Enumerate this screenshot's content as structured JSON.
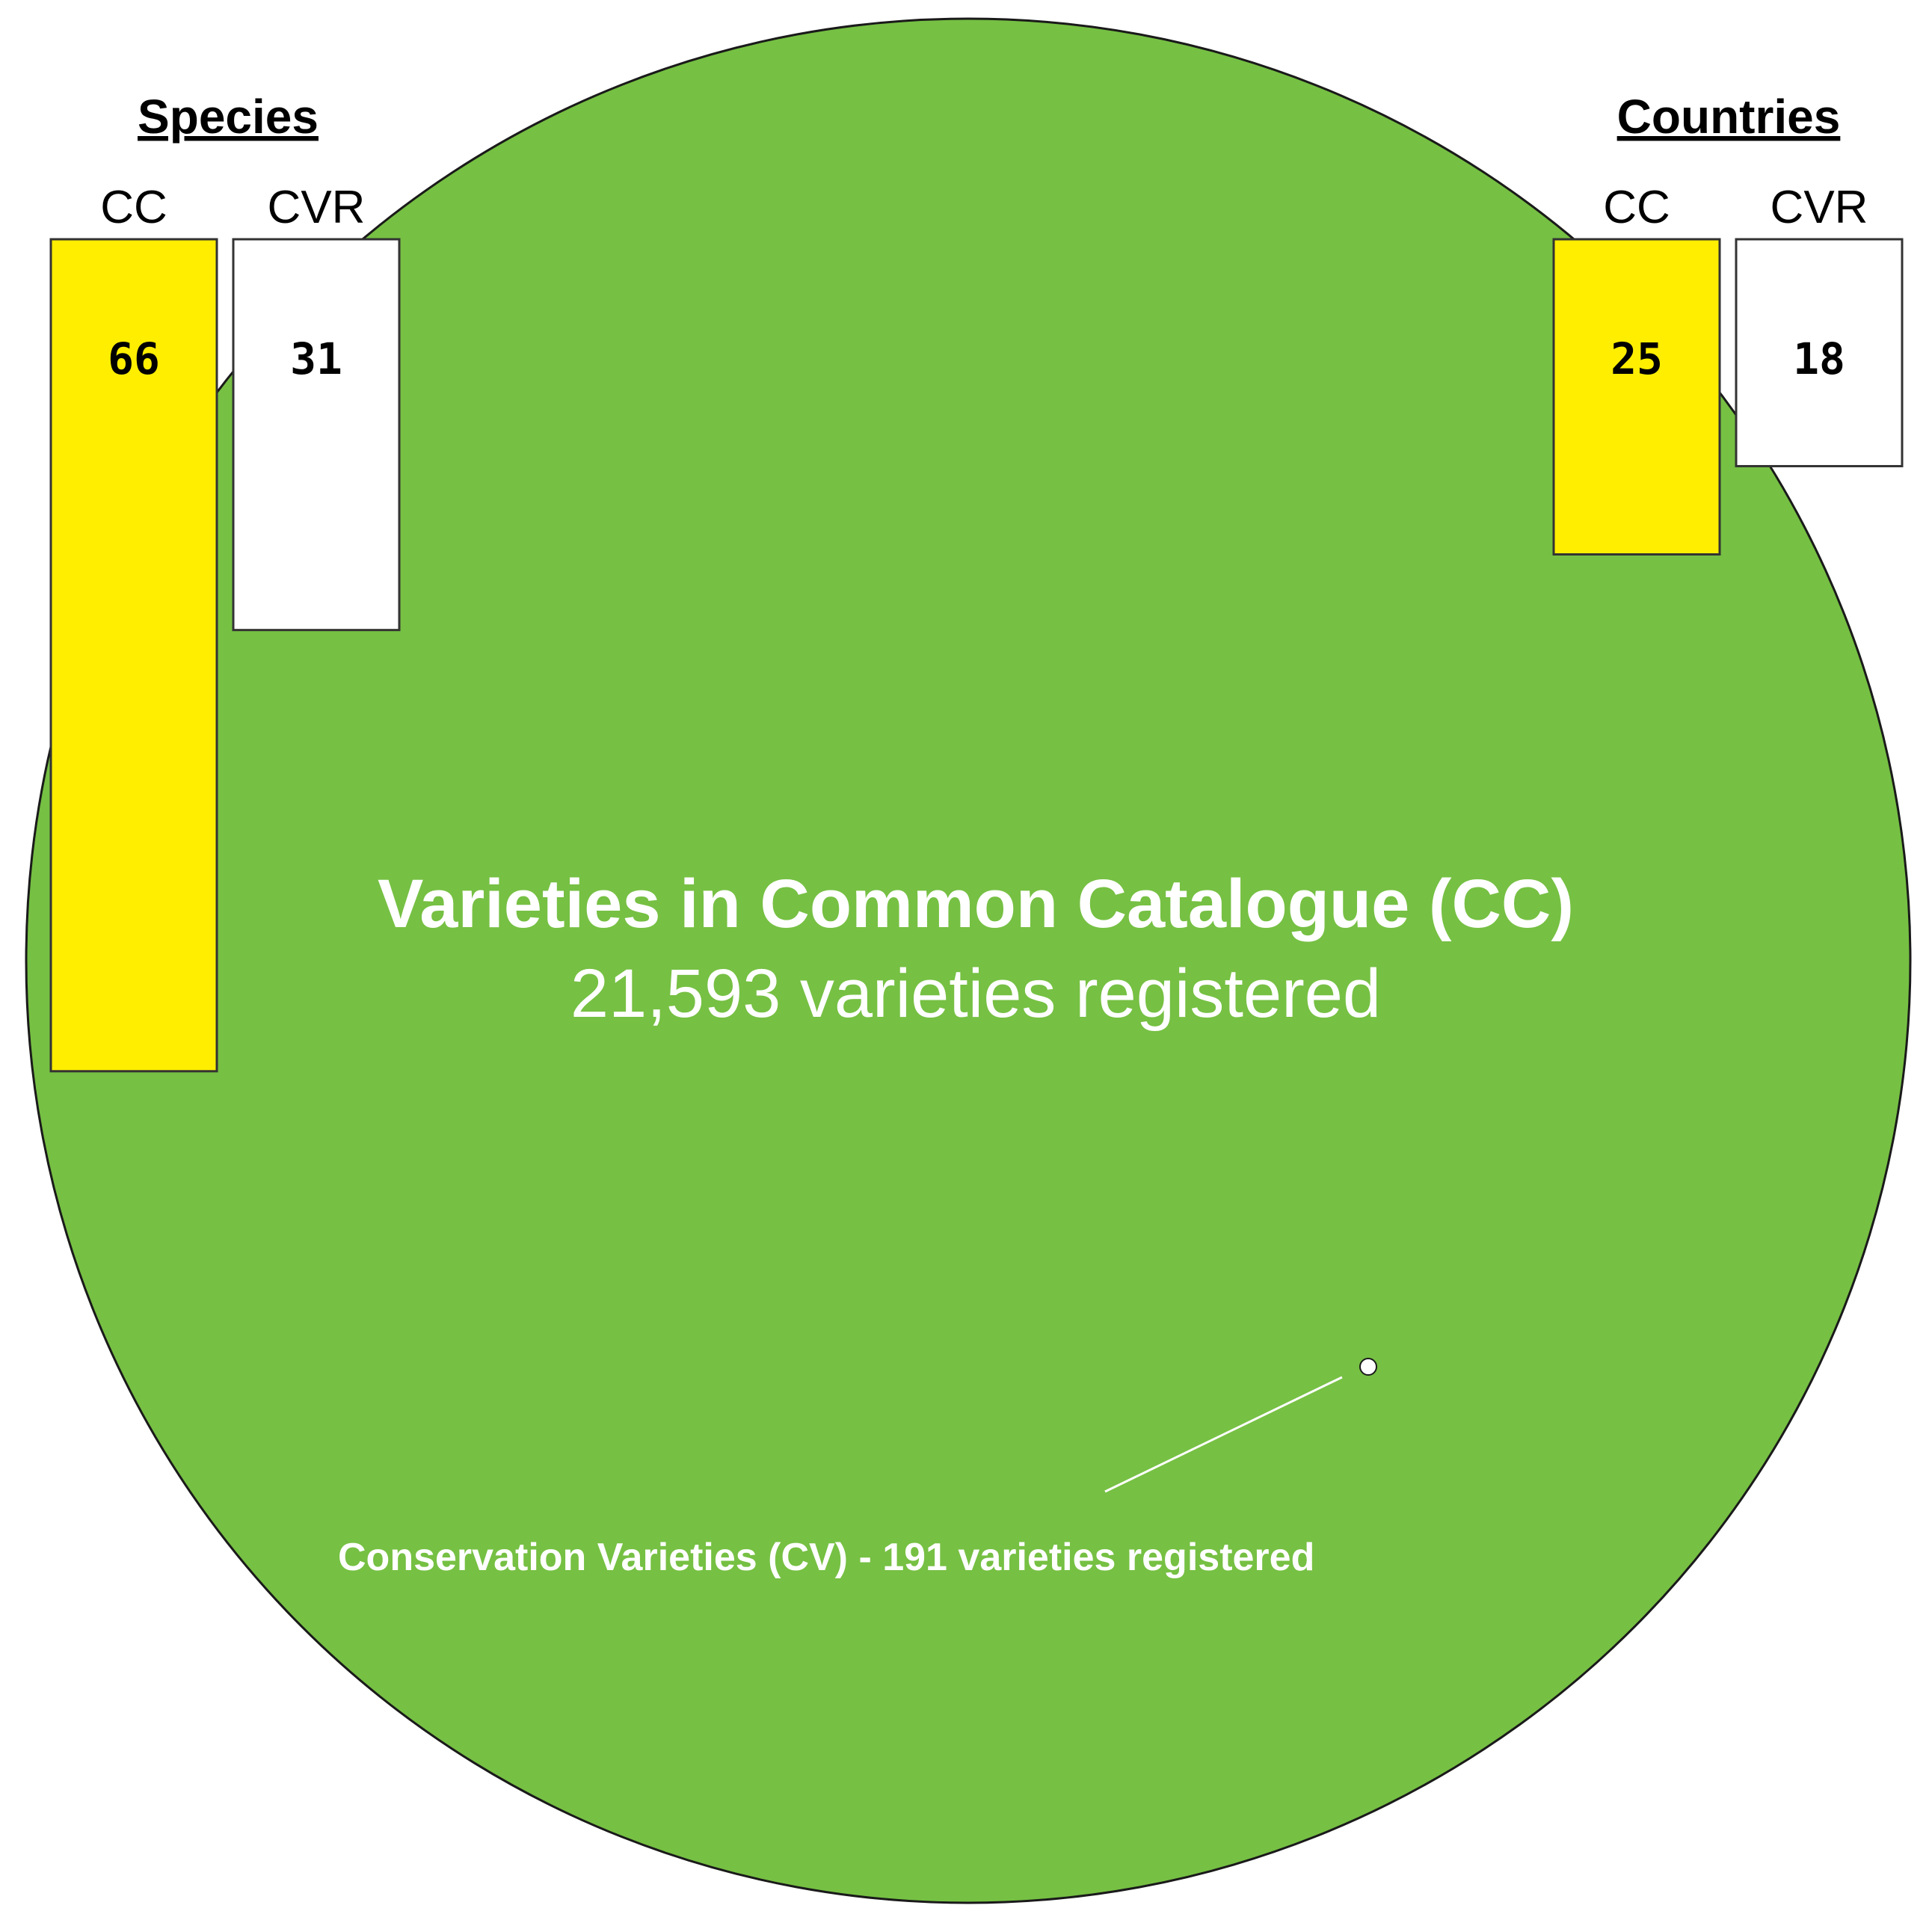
{
  "main_circle": {
    "title": "Varieties in Common Catalogue (CC)",
    "subtitle": "21,593 varieties registered",
    "color": "#76c043"
  },
  "cv_callout": {
    "label": "Conservation Varieties (CV) - 191 varieties registered"
  },
  "colors": {
    "cc": "#ffee00",
    "cvr": "#ffffff"
  },
  "chart_data": {
    "type": "bar",
    "groups": [
      {
        "title": "Species",
        "categories": [
          "CC",
          "CVR"
        ],
        "values": [
          66,
          31
        ]
      },
      {
        "title": "Countries",
        "categories": [
          "CC",
          "CVR"
        ],
        "values": [
          25,
          18
        ]
      }
    ],
    "circles": [
      {
        "label": "Varieties in Common Catalogue (CC)",
        "value": 21593
      },
      {
        "label": "Conservation Varieties (CV)",
        "value": 191
      }
    ]
  }
}
